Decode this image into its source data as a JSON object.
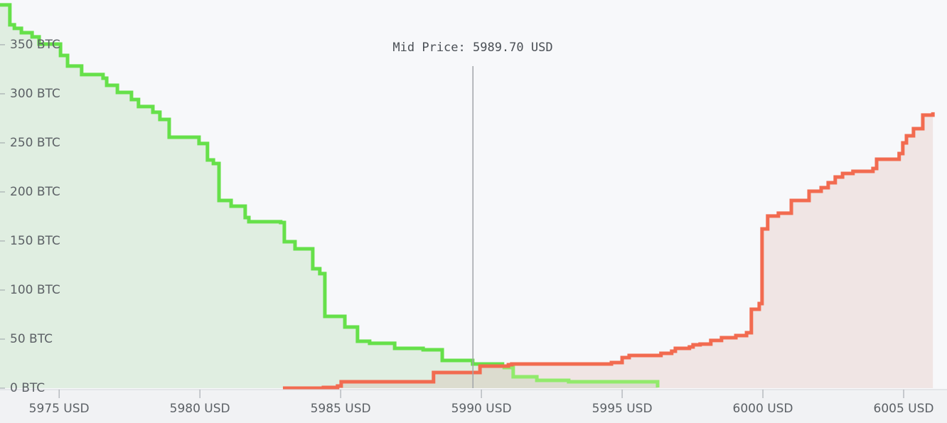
{
  "chart_data": {
    "type": "depth",
    "title": "Mid Price: 5989.70 USD",
    "mid_price": 5989.7,
    "xlim": [
      5972.9,
      6006.54
    ],
    "ylim": [
      0,
      395.6
    ],
    "xticks": [
      {
        "value": 5975,
        "label": "5975 USD"
      },
      {
        "value": 5980,
        "label": "5980 USD"
      },
      {
        "value": 5985,
        "label": "5985 USD"
      },
      {
        "value": 5990,
        "label": "5990 USD"
      },
      {
        "value": 5995,
        "label": "5995 USD"
      },
      {
        "value": 6000,
        "label": "6000 USD"
      },
      {
        "value": 6005,
        "label": "6005 USD"
      }
    ],
    "yticks": [
      {
        "value": 0,
        "label": "0 BTC"
      },
      {
        "value": 50,
        "label": "50 BTC"
      },
      {
        "value": 100,
        "label": "100 BTC"
      },
      {
        "value": 150,
        "label": "150 BTC"
      },
      {
        "value": 200,
        "label": "200 BTC"
      },
      {
        "value": 250,
        "label": "250 BTC"
      },
      {
        "value": 300,
        "label": "300 BTC"
      },
      {
        "value": 350,
        "label": "350 BTC"
      }
    ],
    "series": [
      {
        "color": "#66e04a",
        "fill": "rgba(110,190,100,0.17)",
        "x": [
          5972.9,
          5973.25,
          5973.41,
          5973.66,
          5974.04,
          5974.29,
          5975.05,
          5975.3,
          5975.8,
          5976.56,
          5976.69,
          5977.07,
          5977.57,
          5977.82,
          5978.33,
          5978.58,
          5978.91,
          5979.97,
          5980.27,
          5980.48,
          5980.68,
          5981.11,
          5981.61,
          5981.74,
          5982.87,
          5983.0,
          5983.38,
          5984.01,
          5984.26,
          5984.44,
          5985.15,
          5985.6,
          5986.03,
          5986.92,
          5987.93,
          5988.61,
          5989.69,
          5990.75
        ],
        "values": [
          390.6,
          370.3,
          366.7,
          362.3,
          358.0,
          350.7,
          339.1,
          328.3,
          319.6,
          315.9,
          308.7,
          301.4,
          294.2,
          287.0,
          281.2,
          273.9,
          255.8,
          249.3,
          232.6,
          229.0,
          191.3,
          185.5,
          173.9,
          169.6,
          168.8,
          149.3,
          142.0,
          121.7,
          116.7,
          73.2,
          62.3,
          47.8,
          45.7,
          40.6,
          39.1,
          28.3,
          24.6,
          21.0
        ]
      },
      {
        "color": "#92ea6c",
        "fill": "rgba(110,190,100,0.17)",
        "x": [
          5990.75,
          5991.13,
          5991.97,
          5993.1,
          5996.26
        ],
        "values": [
          21.0,
          11.6,
          8.0,
          6.5,
          0.7
        ]
      },
      {
        "color": "#f26b50",
        "fill": "rgba(200,120,110,0.15)",
        "x": [
          5982.95,
          5984.39,
          5984.89,
          5985.02,
          5988.3,
          5989.95,
          5990.96,
          5991.08,
          5994.62,
          5995.0,
          5995.25,
          5996.38,
          5996.76,
          5996.89,
          5997.39,
          5997.52,
          5997.77,
          5998.15,
          5998.53,
          5999.04,
          5999.42,
          5999.59,
          5999.87,
          5999.97,
          6000.17,
          6000.55,
          6001.01,
          6001.64,
          6002.07,
          6002.32,
          6002.57,
          6002.83,
          6003.2,
          6003.91,
          6004.04,
          6004.84,
          6004.97,
          6005.1,
          6005.35,
          6005.68,
          6006.04
        ],
        "values": [
          0.0,
          0.7,
          2.2,
          6.5,
          15.9,
          22.5,
          23.9,
          24.6,
          26.1,
          31.2,
          33.3,
          35.5,
          37.7,
          40.6,
          42.0,
          44.2,
          44.9,
          48.6,
          51.4,
          53.6,
          56.5,
          80.4,
          86.2,
          162.3,
          175.4,
          178.3,
          191.3,
          200.7,
          204.3,
          209.4,
          215.2,
          218.8,
          221.0,
          223.9,
          233.3,
          239.1,
          250.0,
          257.2,
          264.5,
          278.3,
          281.2
        ]
      }
    ]
  }
}
